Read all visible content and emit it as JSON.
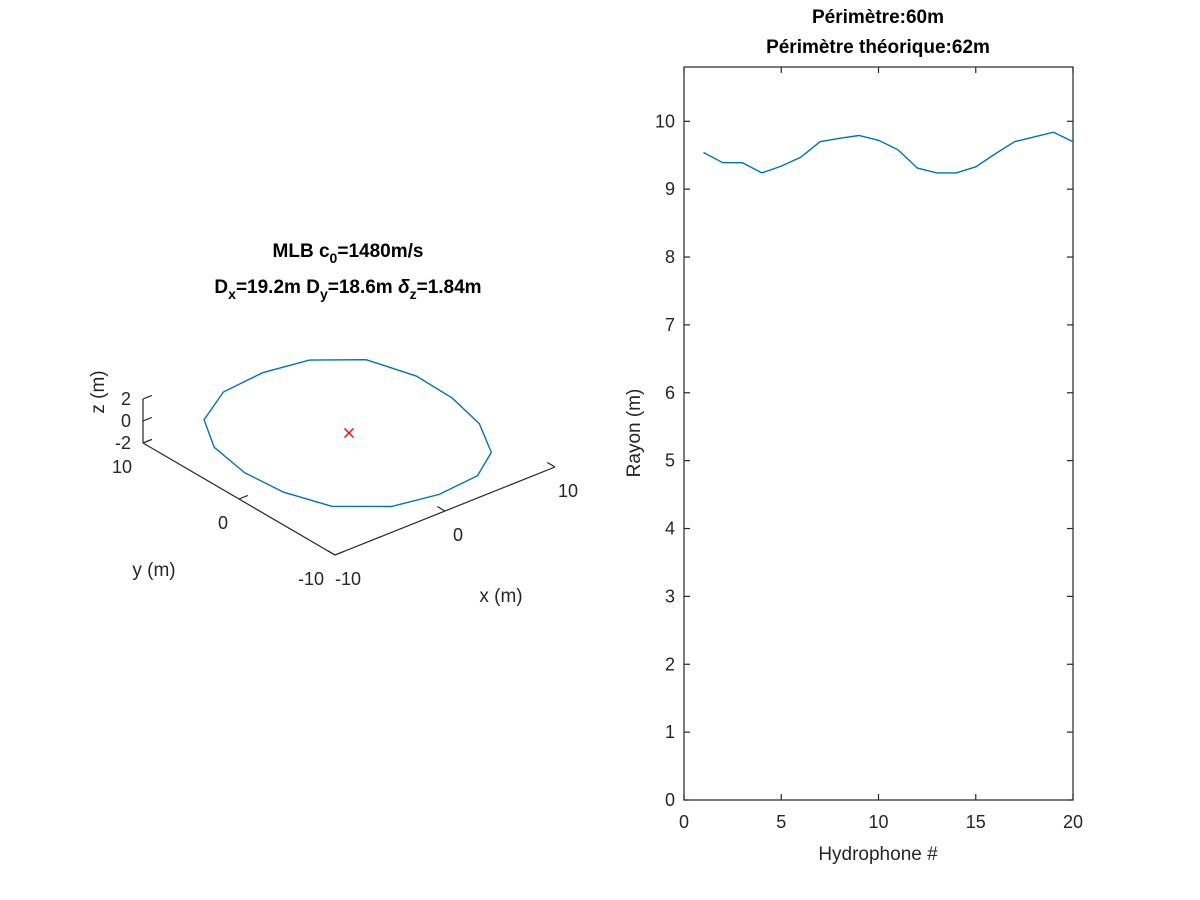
{
  "chart_data": [
    {
      "type": "line",
      "projection": "3d",
      "title_line1": {
        "main": "MLB c",
        "sub": "0",
        "after": "=1480m/s"
      },
      "title_line2": {
        "dx_main": "D",
        "dx_sub": "x",
        "dx_val": "=19.2m ",
        "dy_main": "D",
        "dy_sub": "y",
        "dy_val": "=18.6m ",
        "dz_main": "δ",
        "dz_sub": "z",
        "dz_val": "=1.84m"
      },
      "xlabel": "x (m)",
      "ylabel": "y (m)",
      "zlabel": "z (m)",
      "xlim": [
        -10,
        10
      ],
      "ylim": [
        -10,
        10
      ],
      "zlim": [
        -2,
        2
      ],
      "xticks": [
        "-10",
        "0",
        "10"
      ],
      "yticks": [
        "-10",
        "0",
        "10"
      ],
      "zticks": [
        "-2",
        "0",
        "2"
      ],
      "series_color": "#0072BD",
      "marker": {
        "x": 0,
        "y": 0,
        "z": 0,
        "symbol": "x",
        "color": "#FF0000"
      },
      "series": [
        {
          "points": [
            [
              -9.5,
              0.0,
              0.2
            ],
            [
              -9.2,
              3.5,
              0.6
            ],
            [
              -7.5,
              6.5,
              0.9
            ],
            [
              -4.0,
              8.5,
              1.0
            ],
            [
              0.0,
              9.0,
              0.9
            ],
            [
              4.0,
              8.7,
              0.6
            ],
            [
              7.5,
              6.8,
              0.2
            ],
            [
              9.2,
              3.5,
              -0.3
            ],
            [
              9.4,
              0.0,
              -0.6
            ],
            [
              8.8,
              -3.5,
              -0.9
            ],
            [
              7.0,
              -6.8,
              -1.1
            ],
            [
              4.0,
              -8.8,
              -1.0
            ],
            [
              0.0,
              -9.4,
              -0.8
            ],
            [
              -4.0,
              -9.0,
              -0.5
            ],
            [
              -7.5,
              -6.8,
              -0.2
            ],
            [
              -9.0,
              -3.5,
              0.0
            ],
            [
              -9.5,
              0.0,
              0.2
            ]
          ]
        }
      ]
    },
    {
      "type": "line",
      "title_line1": "Périmètre:60m",
      "title_line2": "Périmètre théorique:62m",
      "xlabel": "Hydrophone #",
      "ylabel": "Rayon (m)",
      "xlim": [
        0,
        20
      ],
      "ylim": [
        0,
        10.8
      ],
      "xticks": [
        0,
        5,
        10,
        15,
        20
      ],
      "yticks": [
        0,
        1,
        2,
        3,
        4,
        5,
        6,
        7,
        8,
        9,
        10
      ],
      "series_color": "#0072BD",
      "x": [
        1,
        2,
        3,
        4,
        5,
        6,
        7,
        8,
        9,
        10,
        11,
        12,
        13,
        14,
        15,
        16,
        17,
        18,
        19,
        20
      ],
      "series": [
        {
          "values": [
            9.54,
            9.39,
            9.39,
            9.24,
            9.34,
            9.47,
            9.7,
            9.75,
            9.79,
            9.72,
            9.58,
            9.31,
            9.24,
            9.24,
            9.33,
            9.52,
            9.7,
            9.77,
            9.84,
            9.7
          ]
        }
      ]
    }
  ]
}
